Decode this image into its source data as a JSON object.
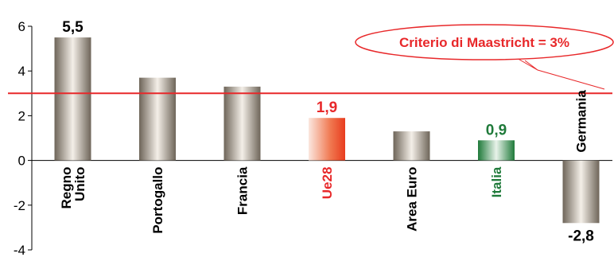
{
  "chart_data": {
    "type": "bar",
    "categories": [
      "Regno Unito",
      "Portogallo",
      "Francia",
      "Ue28",
      "Area Euro",
      "Italia",
      "Germania"
    ],
    "category_lines": [
      [
        "Regno",
        "Unito"
      ],
      [
        "Portogallo"
      ],
      [
        "Francia"
      ],
      [
        "Ue28"
      ],
      [
        "Area Euro"
      ],
      [
        "Italia"
      ],
      [
        "Germania"
      ]
    ],
    "values": [
      5.5,
      3.7,
      3.3,
      1.9,
      1.3,
      0.9,
      -2.8
    ],
    "data_labels": [
      "5,5",
      null,
      null,
      "1,9",
      null,
      "0,9",
      "-2,8"
    ],
    "ylim": [
      -4,
      6
    ],
    "yticks": [
      -4,
      -2,
      0,
      2,
      4,
      6
    ],
    "grid": false,
    "bar_styles": [
      "metal",
      "metal",
      "metal",
      "red",
      "metal",
      "green",
      "metal"
    ],
    "label_colors": [
      "#000000",
      "#000000",
      "#000000",
      "#e8282a",
      "#000000",
      "#1f7a3a",
      "#000000"
    ],
    "colors": {
      "red": "#e8282a",
      "green": "#1f7a3a",
      "metal": "#8e8579",
      "reference_line": "#e8282a"
    },
    "reference_line": {
      "value": 3,
      "label": "Criterio di Maastricht = 3%"
    }
  }
}
